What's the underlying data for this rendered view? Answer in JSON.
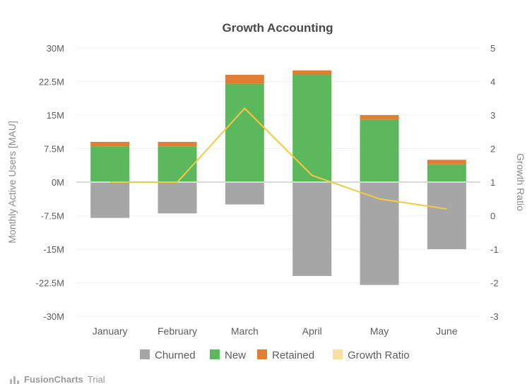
{
  "watermark": {
    "brand": "FusionCharts",
    "trial": "Trial"
  },
  "chart_data": {
    "type": "bar",
    "title": "Growth Accounting",
    "ylabel": "Monthly Active Users [MAU]",
    "y2label": "Growth Ratio",
    "categories": [
      "January",
      "February",
      "March",
      "April",
      "May",
      "June"
    ],
    "ylim": [
      -30000000,
      30000000
    ],
    "y_ticks": [
      30000000,
      22500000,
      15000000,
      7500000,
      0,
      -7500000,
      -15000000,
      -22500000,
      -30000000
    ],
    "y_tick_labels": [
      "30M",
      "22.5M",
      "15M",
      "7.5M",
      "0M",
      "-7.5M",
      "-15M",
      "-22.5M",
      "-30M"
    ],
    "y2lim": [
      -3,
      5
    ],
    "y2_ticks": [
      5,
      4,
      3,
      2,
      1,
      0,
      -1,
      -2,
      -3
    ],
    "y2_tick_labels": [
      "5",
      "4",
      "3",
      "2",
      "1",
      "0",
      "-1",
      "-2",
      "-3"
    ],
    "grid": true,
    "legend_position": "bottom",
    "series": [
      {
        "name": "Churned",
        "kind": "bar",
        "stack": "negative",
        "color": "#a6a6a6",
        "values": [
          -8000000,
          -7000000,
          -5000000,
          -21000000,
          -23000000,
          -15000000
        ]
      },
      {
        "name": "New",
        "kind": "bar",
        "stack": "positive",
        "color": "#5bb85d",
        "values": [
          8000000,
          8000000,
          22000000,
          24000000,
          14000000,
          4000000
        ]
      },
      {
        "name": "Retained",
        "kind": "bar",
        "stack": "positive",
        "color": "#e07e34",
        "values": [
          1000000,
          1000000,
          2000000,
          1000000,
          1000000,
          1000000
        ]
      },
      {
        "name": "Growth Ratio",
        "kind": "line",
        "axis": "secondary",
        "color": "#f5c842",
        "values": [
          1.0,
          1.0,
          3.2,
          1.2,
          0.5,
          0.2
        ]
      }
    ]
  }
}
